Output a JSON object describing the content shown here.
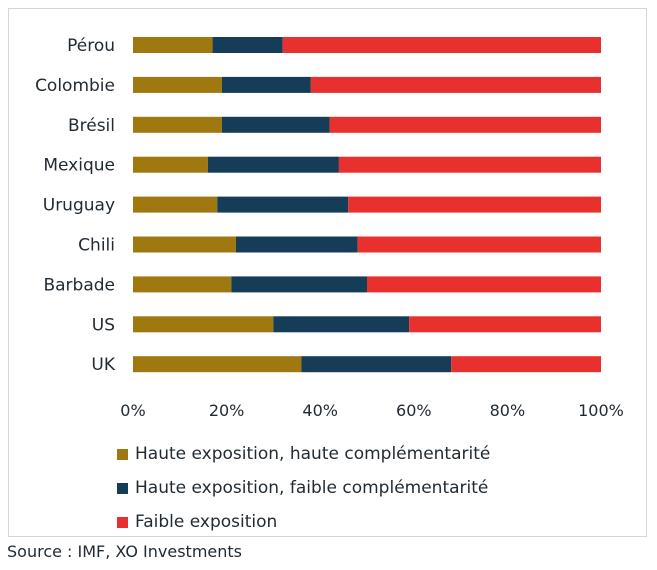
{
  "chart_data": {
    "type": "bar",
    "orientation": "horizontal",
    "stacked": true,
    "categories": [
      "Pérou",
      "Colombie",
      "Brésil",
      "Mexique",
      "Uruguay",
      "Chili",
      "Barbade",
      "US",
      "UK"
    ],
    "series": [
      {
        "name": "Haute exposition, haute complémentarité",
        "color": "#a07810",
        "values": [
          17,
          19,
          19,
          16,
          18,
          22,
          21,
          30,
          36
        ]
      },
      {
        "name": "Haute exposition, faible complémentarité",
        "color": "#163d57",
        "values": [
          15,
          19,
          23,
          28,
          28,
          26,
          29,
          29,
          32
        ]
      },
      {
        "name": "Faible exposition",
        "color": "#e8312e",
        "values": [
          68,
          62,
          58,
          56,
          54,
          52,
          50,
          41,
          32
        ]
      }
    ],
    "xlim": [
      0,
      100
    ],
    "x_ticks": [
      "0%",
      "20%",
      "40%",
      "60%",
      "80%",
      "100%"
    ],
    "legend_position": "bottom",
    "grid": false
  },
  "source": "Source : IMF, XO Investments"
}
